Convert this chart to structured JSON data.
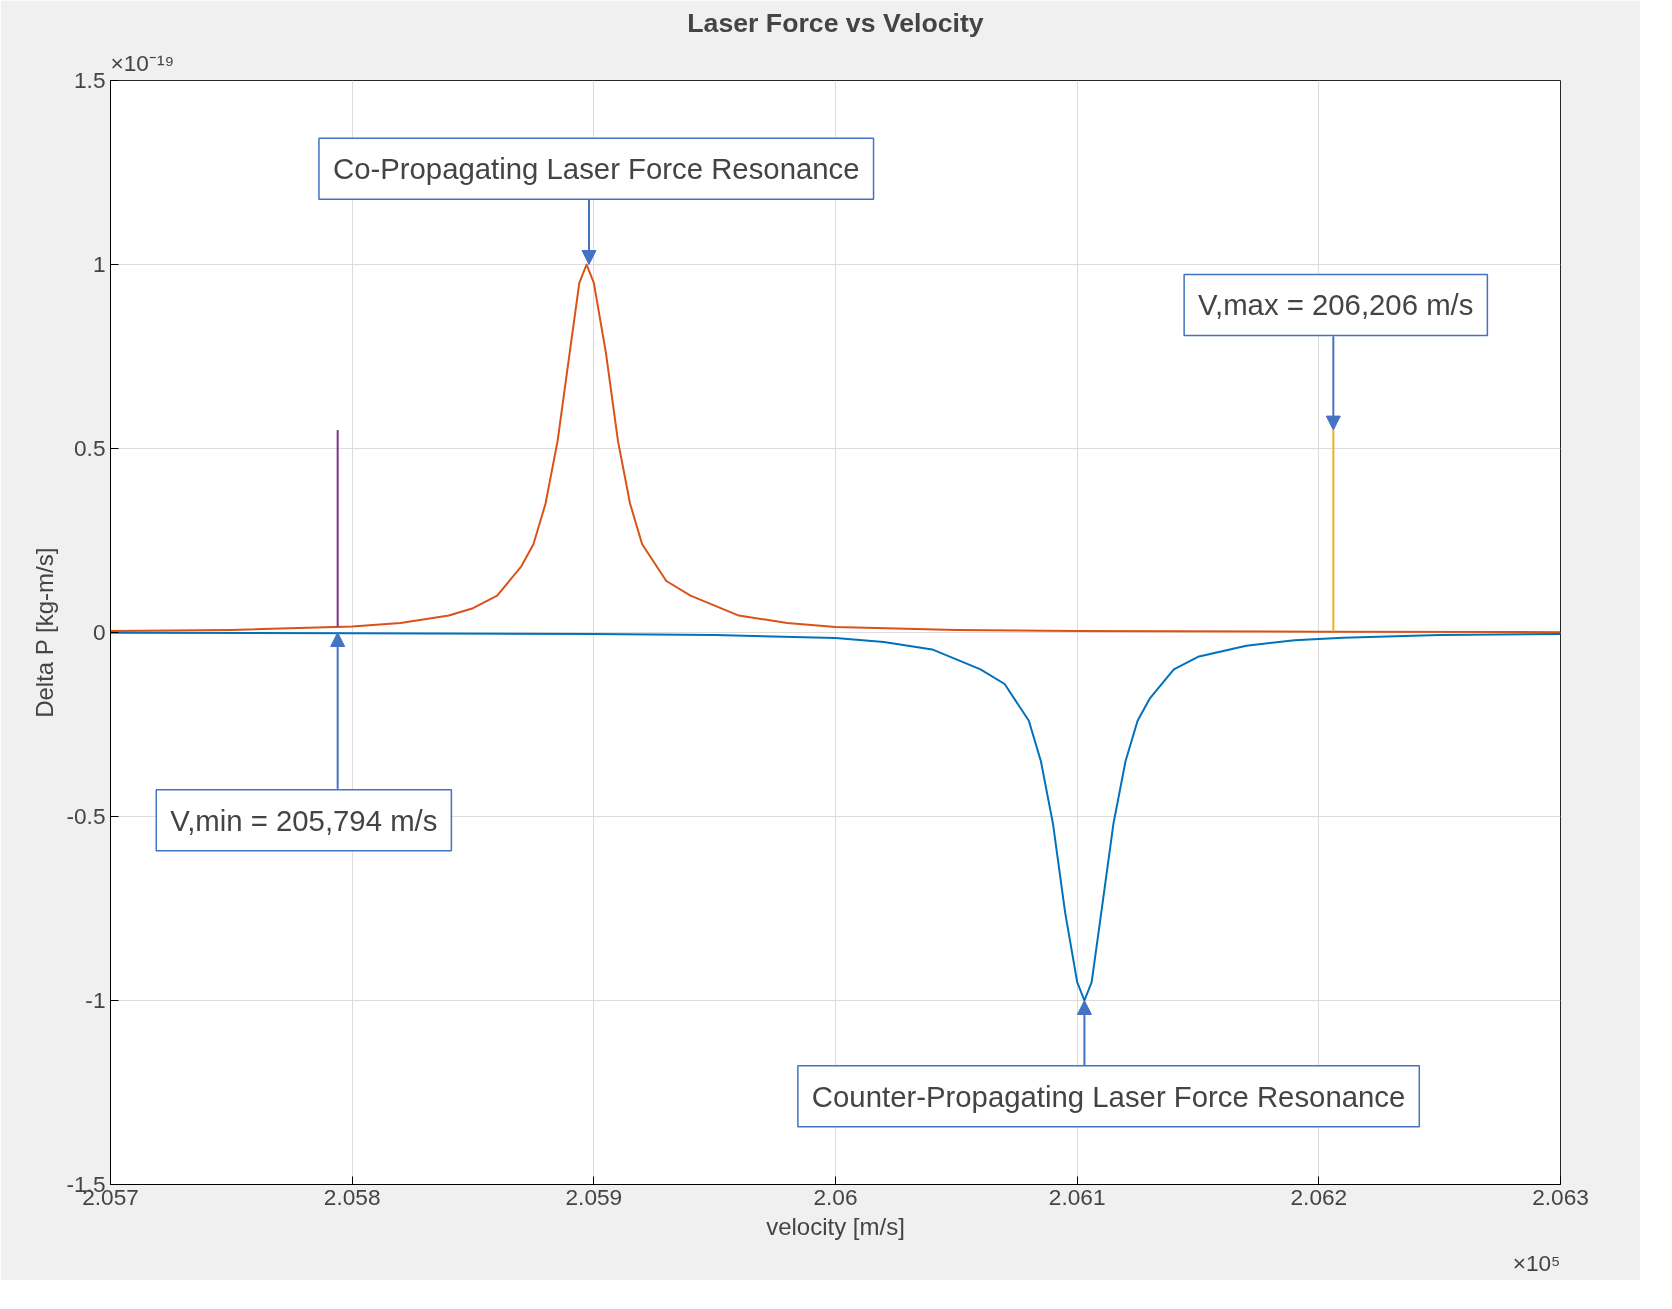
{
  "chart_data": {
    "type": "line",
    "title": "Laser Force vs Velocity",
    "xlabel": "velocity [m/s]",
    "ylabel": "Delta P [kg-m/s]",
    "xlim": [
      2.057,
      2.063
    ],
    "xticks": [
      2.057,
      2.058,
      2.059,
      2.06,
      2.061,
      2.062,
      2.063
    ],
    "ylim": [
      -1.5,
      1.5
    ],
    "yticks": [
      -1.5,
      -1,
      -0.5,
      0,
      0.5,
      1,
      1.5
    ],
    "grid": true,
    "marker": "none",
    "line_style": "solid",
    "series": [
      {
        "color": "#d95319",
        "x": [
          2.057,
          2.0575,
          2.058,
          2.0582,
          2.0584,
          2.0585,
          2.0586,
          2.0587,
          2.05875,
          2.0588,
          2.05885,
          2.0589,
          2.05894,
          2.05897,
          2.059,
          2.05905,
          2.0591,
          2.05915,
          2.0592,
          2.0593,
          2.0594,
          2.0596,
          2.0598,
          2.06,
          2.0605,
          2.061,
          2.062,
          2.063
        ],
        "values": [
          0.004,
          0.007,
          0.016,
          0.026,
          0.046,
          0.066,
          0.1,
          0.18,
          0.24,
          0.35,
          0.52,
          0.76,
          0.95,
          1.0,
          0.95,
          0.76,
          0.52,
          0.35,
          0.24,
          0.14,
          0.1,
          0.046,
          0.026,
          0.015,
          0.007,
          0.004,
          0.002,
          0.001
        ]
      },
      {
        "color": "#0072bd",
        "x": [
          2.057,
          2.058,
          2.059,
          2.0595,
          2.06,
          2.0602,
          2.0604,
          2.0606,
          2.0607,
          2.0608,
          2.06085,
          2.0609,
          2.06095,
          2.061,
          2.06103,
          2.06106,
          2.0611,
          2.06115,
          2.0612,
          2.06125,
          2.0613,
          2.0614,
          2.0615,
          2.0617,
          2.0619,
          2.0621,
          2.0625,
          2.063
        ],
        "values": [
          -0.001,
          -0.002,
          -0.004,
          -0.007,
          -0.015,
          -0.026,
          -0.046,
          -0.1,
          -0.14,
          -0.24,
          -0.35,
          -0.52,
          -0.76,
          -0.95,
          -1.0,
          -0.95,
          -0.76,
          -0.52,
          -0.35,
          -0.24,
          -0.18,
          -0.1,
          -0.066,
          -0.036,
          -0.021,
          -0.014,
          -0.007,
          -0.004
        ]
      },
      {
        "color": "#7e2f8e",
        "x": [
          2.05794,
          2.05794
        ],
        "values": [
          0.016,
          0.55
        ]
      },
      {
        "color": "#edb120",
        "x": [
          2.06206,
          2.06206
        ],
        "values": [
          0.003,
          0.55
        ]
      }
    ],
    "annotations": [
      {
        "text": "Co-Propagating Laser Force Resonance",
        "x": 2.05898,
        "y": 1.0
      },
      {
        "text": "V,max = 206,206 m/s",
        "x": 2.06206,
        "y": 0.55
      },
      {
        "text": "V,min = 205,794 m/s",
        "x": 2.05794,
        "y": 0.0
      },
      {
        "text": "Counter-Propagating Laser Force Resonance",
        "x": 2.06103,
        "y": -1.0
      },
      "×10⁻¹⁹",
      "×10⁵"
    ]
  }
}
